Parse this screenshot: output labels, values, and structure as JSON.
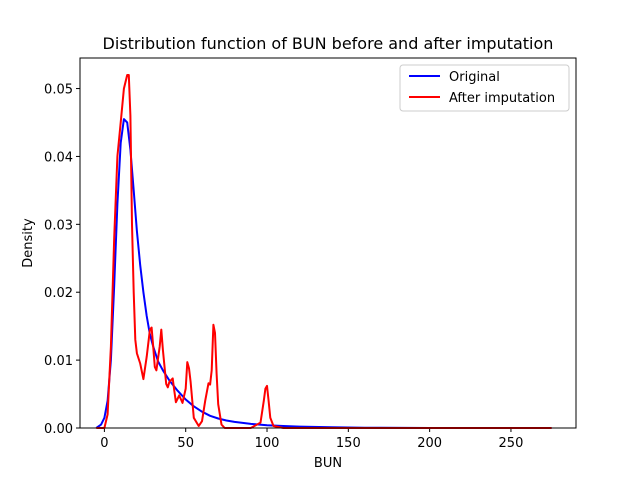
{
  "chart_data": {
    "type": "line",
    "title": "Distribution function of BUN before and after imputation",
    "xlabel": "BUN",
    "ylabel": "Density",
    "xlim": [
      -15,
      290
    ],
    "ylim": [
      0,
      0.0545
    ],
    "x_ticks": [
      0,
      50,
      100,
      150,
      200,
      250
    ],
    "y_ticks": [
      0.0,
      0.01,
      0.02,
      0.03,
      0.04,
      0.05
    ],
    "y_tick_labels": [
      "0.00",
      "0.01",
      "0.02",
      "0.03",
      "0.04",
      "0.05"
    ],
    "grid": false,
    "legend_position": "top-right",
    "series": [
      {
        "name": "Original",
        "color": "#0000ff",
        "x": [
          -5,
          -2,
          0,
          2,
          4,
          6,
          8,
          10,
          12,
          14,
          16,
          18,
          20,
          22,
          24,
          26,
          28,
          30,
          33,
          36,
          40,
          45,
          50,
          55,
          60,
          65,
          70,
          75,
          80,
          90,
          100,
          110,
          120,
          140,
          160,
          200,
          250,
          275
        ],
        "values": [
          0.0,
          0.0005,
          0.0015,
          0.004,
          0.01,
          0.021,
          0.033,
          0.042,
          0.0455,
          0.045,
          0.041,
          0.035,
          0.029,
          0.024,
          0.02,
          0.0165,
          0.0138,
          0.012,
          0.0098,
          0.0085,
          0.007,
          0.0055,
          0.0042,
          0.0032,
          0.0024,
          0.0018,
          0.0014,
          0.0011,
          0.0009,
          0.0006,
          0.0004,
          0.0003,
          0.0002,
          0.0001,
          5e-05,
          0.0,
          0.0,
          0.0
        ]
      },
      {
        "name": "After imputation",
        "color": "#ff0000",
        "x": [
          -5,
          0,
          2,
          4,
          6,
          8,
          10,
          12,
          14,
          15,
          16,
          17,
          18,
          19,
          20,
          22,
          24,
          26,
          28,
          29,
          30,
          31,
          32,
          34,
          35,
          36,
          38,
          39,
          40,
          42,
          43,
          44,
          46,
          48,
          50,
          51,
          52,
          53,
          55,
          58,
          60,
          62,
          64,
          65,
          66,
          67,
          68,
          69,
          70,
          72,
          74,
          80,
          90,
          96,
          98,
          99,
          100,
          101,
          102,
          104,
          110,
          150,
          200,
          275
        ],
        "values": [
          0.0,
          0.0,
          0.002,
          0.012,
          0.028,
          0.04,
          0.045,
          0.05,
          0.052,
          0.052,
          0.046,
          0.03,
          0.02,
          0.013,
          0.011,
          0.0095,
          0.0072,
          0.0105,
          0.0145,
          0.0148,
          0.012,
          0.009,
          0.0085,
          0.012,
          0.0145,
          0.0115,
          0.0065,
          0.006,
          0.0068,
          0.0073,
          0.0055,
          0.0038,
          0.0048,
          0.0037,
          0.0058,
          0.0097,
          0.0088,
          0.0068,
          0.0015,
          0.0003,
          0.001,
          0.004,
          0.0066,
          0.0064,
          0.0085,
          0.0152,
          0.014,
          0.008,
          0.0035,
          0.0005,
          0.0,
          0.0,
          0.0,
          0.0008,
          0.004,
          0.0058,
          0.0062,
          0.004,
          0.0015,
          0.0003,
          0.0,
          0.0,
          0.0,
          0.0
        ]
      }
    ]
  }
}
